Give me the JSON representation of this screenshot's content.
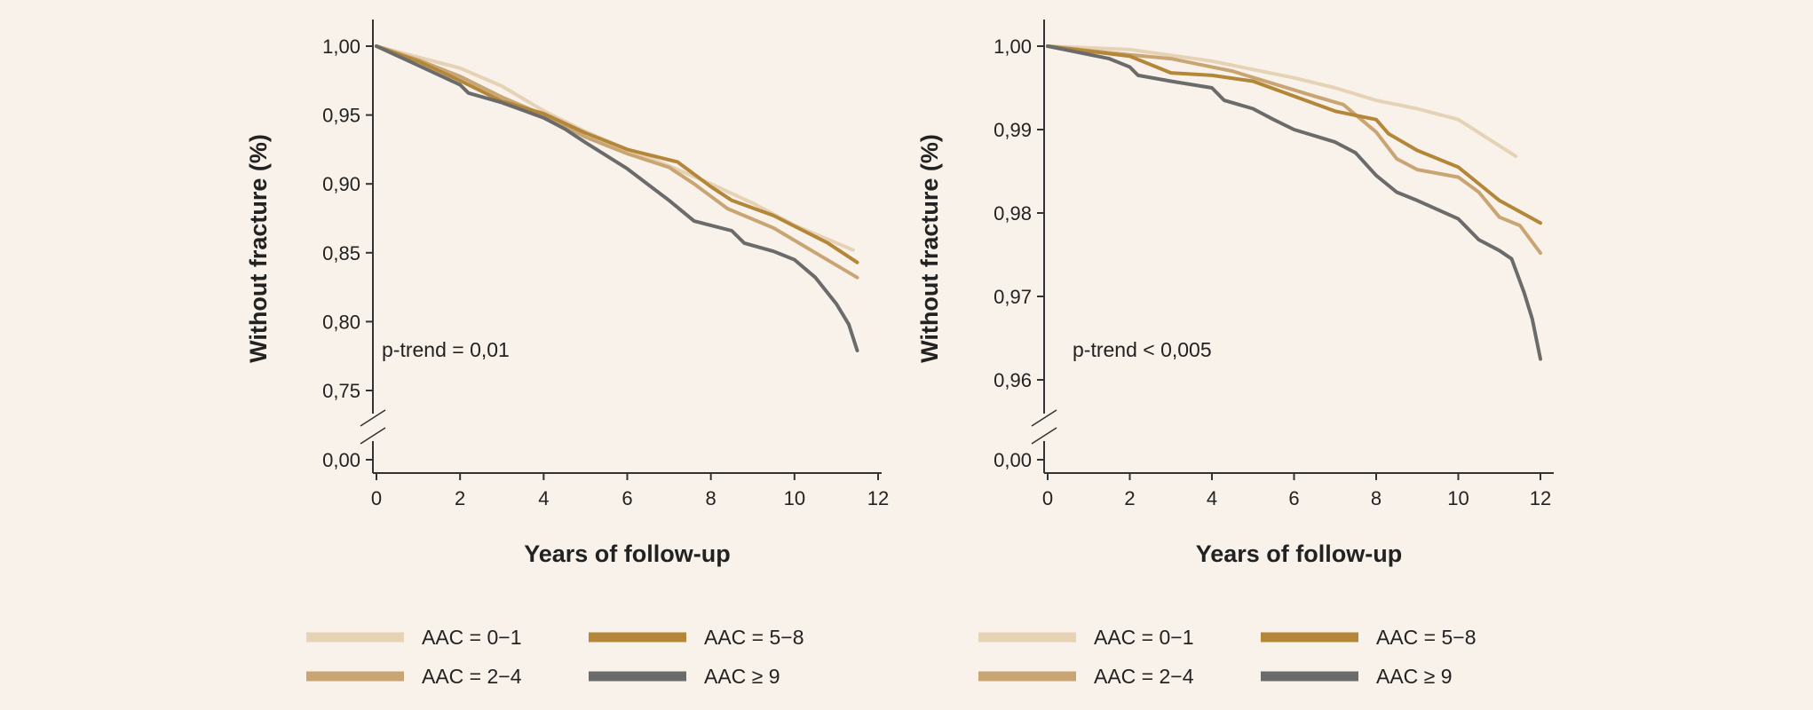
{
  "colors": {
    "background": "#f9f2ea",
    "axis": "#333333",
    "aac_0_1": "#e6d2b5",
    "aac_2_4": "#c9a574",
    "aac_5_8": "#b38638",
    "aac_9_plus": "#6b6b6b"
  },
  "chart_data": [
    {
      "type": "line",
      "panel": "left",
      "xlabel": "Years of follow-up",
      "ylabel": "Without fracture (%)",
      "xlim": [
        0,
        12
      ],
      "ylim": [
        0.75,
        1.0
      ],
      "axis_break": true,
      "break_tick": "0,00",
      "x_ticks": [
        0,
        2,
        4,
        6,
        8,
        10,
        12
      ],
      "x_tick_labels": [
        "0",
        "2",
        "4",
        "6",
        "8",
        "10",
        "12"
      ],
      "y_ticks": [
        1.0,
        0.95,
        0.9,
        0.85,
        0.8,
        0.75
      ],
      "y_tick_labels": [
        "1,00",
        "0,95",
        "0,90",
        "0,85",
        "0,80",
        "0,75"
      ],
      "annotation": "p-trend = 0,01",
      "series": [
        {
          "name": "AAC = 0−1",
          "color": "#e6d2b5",
          "points": [
            [
              0,
              1.0
            ],
            [
              1,
              0.992
            ],
            [
              2,
              0.984
            ],
            [
              3,
              0.971
            ],
            [
              4,
              0.953
            ],
            [
              5,
              0.938
            ],
            [
              6,
              0.925
            ],
            [
              7,
              0.913
            ],
            [
              8,
              0.9
            ],
            [
              9,
              0.886
            ],
            [
              10,
              0.87
            ],
            [
              11.4,
              0.852
            ]
          ]
        },
        {
          "name": "AAC = 2−4",
          "color": "#c9a574",
          "points": [
            [
              0,
              1.0
            ],
            [
              1,
              0.99
            ],
            [
              2,
              0.978
            ],
            [
              3,
              0.963
            ],
            [
              4,
              0.95
            ],
            [
              5,
              0.934
            ],
            [
              6,
              0.922
            ],
            [
              7,
              0.912
            ],
            [
              7.6,
              0.9
            ],
            [
              8.4,
              0.882
            ],
            [
              9.5,
              0.868
            ],
            [
              10.5,
              0.85
            ],
            [
              11.5,
              0.832
            ]
          ]
        },
        {
          "name": "AAC = 5−8",
          "color": "#b38638",
          "points": [
            [
              0,
              1.0
            ],
            [
              1,
              0.989
            ],
            [
              2,
              0.975
            ],
            [
              3,
              0.96
            ],
            [
              4,
              0.951
            ],
            [
              5,
              0.937
            ],
            [
              6,
              0.925
            ],
            [
              7.2,
              0.916
            ],
            [
              8,
              0.898
            ],
            [
              8.5,
              0.888
            ],
            [
              9.5,
              0.877
            ],
            [
              10.8,
              0.857
            ],
            [
              11.5,
              0.843
            ]
          ]
        },
        {
          "name": "AAC ≥ 9",
          "color": "#6b6b6b",
          "points": [
            [
              0,
              1.0
            ],
            [
              1,
              0.986
            ],
            [
              2,
              0.972
            ],
            [
              2.2,
              0.966
            ],
            [
              3,
              0.959
            ],
            [
              4,
              0.948
            ],
            [
              4.5,
              0.94
            ],
            [
              5,
              0.93
            ],
            [
              6,
              0.911
            ],
            [
              7,
              0.888
            ],
            [
              7.6,
              0.873
            ],
            [
              8.5,
              0.866
            ],
            [
              8.8,
              0.857
            ],
            [
              9.5,
              0.851
            ],
            [
              10,
              0.845
            ],
            [
              10.5,
              0.832
            ],
            [
              11,
              0.813
            ],
            [
              11.3,
              0.798
            ],
            [
              11.5,
              0.779
            ]
          ]
        }
      ]
    },
    {
      "type": "line",
      "panel": "right",
      "xlabel": "Years of follow-up",
      "ylabel": "Without fracture (%)",
      "xlim": [
        0,
        12
      ],
      "ylim": [
        0.96,
        1.0
      ],
      "axis_break": true,
      "break_tick": "0,00",
      "x_ticks": [
        0,
        2,
        4,
        6,
        8,
        10,
        12
      ],
      "x_tick_labels": [
        "0",
        "2",
        "4",
        "6",
        "8",
        "10",
        "12"
      ],
      "y_ticks": [
        1.0,
        0.99,
        0.98,
        0.97,
        0.96
      ],
      "y_tick_labels": [
        "1,00",
        "0,99",
        "0,98",
        "0,97",
        "0,96"
      ],
      "annotation": "p-trend < 0,005",
      "series": [
        {
          "name": "AAC = 0−1",
          "color": "#e6d2b5",
          "points": [
            [
              0,
              1.0
            ],
            [
              2,
              0.9996
            ],
            [
              4,
              0.9982
            ],
            [
              5,
              0.9972
            ],
            [
              6,
              0.9962
            ],
            [
              7,
              0.995
            ],
            [
              8,
              0.9935
            ],
            [
              9,
              0.9925
            ],
            [
              10,
              0.9912
            ],
            [
              11.4,
              0.9868
            ]
          ]
        },
        {
          "name": "AAC = 2−4",
          "color": "#c9a574",
          "points": [
            [
              0,
              1.0
            ],
            [
              1.5,
              0.9992
            ],
            [
              3,
              0.9985
            ],
            [
              4.5,
              0.997
            ],
            [
              5.5,
              0.9955
            ],
            [
              6.5,
              0.994
            ],
            [
              7.2,
              0.993
            ],
            [
              8,
              0.9897
            ],
            [
              8.5,
              0.9865
            ],
            [
              9,
              0.9852
            ],
            [
              10,
              0.9843
            ],
            [
              10.5,
              0.9825
            ],
            [
              11,
              0.9795
            ],
            [
              11.5,
              0.9785
            ],
            [
              12,
              0.9752
            ]
          ]
        },
        {
          "name": "AAC = 5−8",
          "color": "#b38638",
          "points": [
            [
              0,
              1.0
            ],
            [
              2,
              0.9988
            ],
            [
              3,
              0.9968
            ],
            [
              4,
              0.9965
            ],
            [
              5,
              0.9958
            ],
            [
              6,
              0.994
            ],
            [
              7,
              0.9922
            ],
            [
              8,
              0.9912
            ],
            [
              8.3,
              0.9895
            ],
            [
              9,
              0.9875
            ],
            [
              10,
              0.9855
            ],
            [
              11,
              0.9815
            ],
            [
              12,
              0.9788
            ]
          ]
        },
        {
          "name": "AAC ≥ 9",
          "color": "#6b6b6b",
          "points": [
            [
              0,
              1.0
            ],
            [
              1.5,
              0.9985
            ],
            [
              2,
              0.9975
            ],
            [
              2.2,
              0.9965
            ],
            [
              3,
              0.9958
            ],
            [
              4,
              0.995
            ],
            [
              4.3,
              0.9935
            ],
            [
              5,
              0.9925
            ],
            [
              5.5,
              0.9912
            ],
            [
              6,
              0.99
            ],
            [
              7,
              0.9885
            ],
            [
              7.5,
              0.9872
            ],
            [
              8,
              0.9845
            ],
            [
              8.5,
              0.9825
            ],
            [
              9,
              0.9815
            ],
            [
              10,
              0.9793
            ],
            [
              10.5,
              0.9768
            ],
            [
              11,
              0.9755
            ],
            [
              11.3,
              0.9745
            ],
            [
              11.6,
              0.9705
            ],
            [
              11.8,
              0.9673
            ],
            [
              12,
              0.9625
            ]
          ]
        }
      ]
    }
  ]
}
